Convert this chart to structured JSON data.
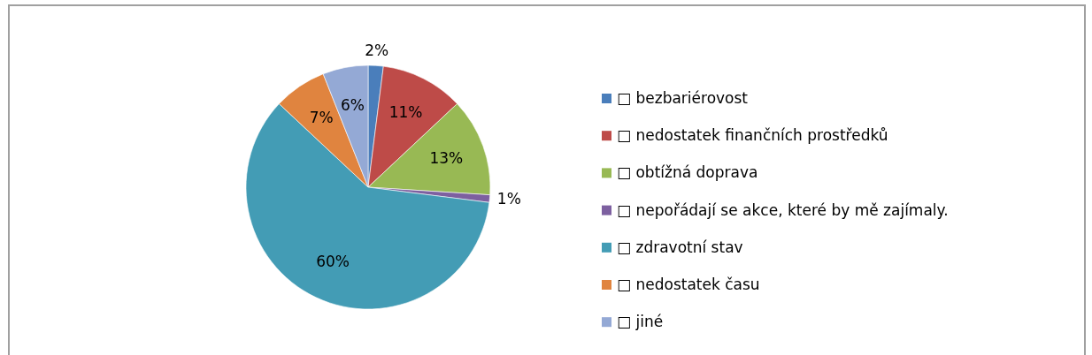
{
  "chart_data": {
    "type": "pie",
    "categories": [
      "□ bezbariérovost",
      "□ nedostatek finančních prostředků",
      "□ obtížná doprava",
      "□ nepořádají se akce, které by mě zajímaly.",
      "□ zdravotní stav",
      "□ nedostatek času",
      "□ jiné"
    ],
    "values": [
      2,
      11,
      13,
      1,
      60,
      7,
      6
    ],
    "colors": [
      "#4a7ebb",
      "#be4b48",
      "#98b954",
      "#7d60a0",
      "#439cb5",
      "#e0843f",
      "#94a9d5"
    ],
    "value_labels": [
      "2%",
      "11%",
      "13%",
      "1%",
      "60%",
      "7%",
      "6%"
    ],
    "legend": "right"
  }
}
